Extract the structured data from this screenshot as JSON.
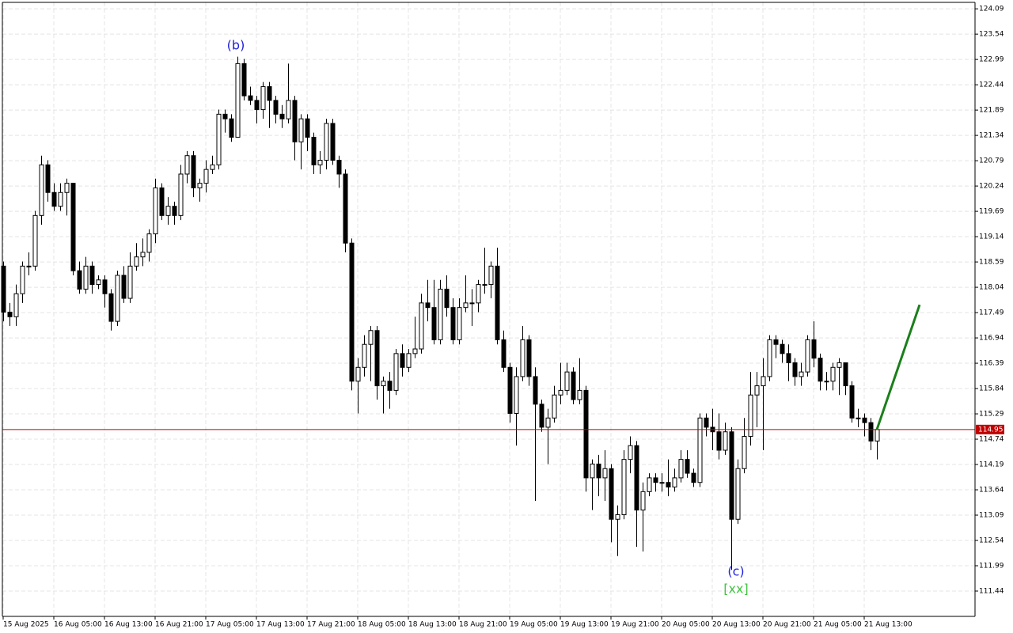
{
  "chart_data": {
    "type": "candlestick",
    "up_color": "#ffffff",
    "down_color": "#000000",
    "wick_color": "#000000",
    "grid": true,
    "current_price": 114.95,
    "current_price_color": "#c00000",
    "annotations": [
      {
        "text": "(b)",
        "color": "#2222dd"
      },
      {
        "text": "(c)",
        "color": "#2222dd"
      },
      {
        "text": "[xx]",
        "color": "#44c444"
      }
    ],
    "forecast": {
      "color": "#1a7f1a",
      "x": [
        138,
        144.75
      ],
      "values": [
        114.95,
        117.66
      ]
    },
    "xlim": [
      -0.125,
      153.5
    ],
    "xticks": [
      {
        "value": 0,
        "label": "15 Aug 2025"
      },
      {
        "value": 8,
        "label": "16 Aug 05:00"
      },
      {
        "value": 16,
        "label": "16 Aug 13:00"
      },
      {
        "value": 24,
        "label": "16 Aug 21:00"
      },
      {
        "value": 32,
        "label": "17 Aug 05:00"
      },
      {
        "value": 40,
        "label": "17 Aug 13:00"
      },
      {
        "value": 48,
        "label": "17 Aug 21:00"
      },
      {
        "value": 56,
        "label": "18 Aug 05:00"
      },
      {
        "value": 64,
        "label": "18 Aug 13:00"
      },
      {
        "value": 72,
        "label": "18 Aug 21:00"
      },
      {
        "value": 80,
        "label": "19 Aug 05:00"
      },
      {
        "value": 88,
        "label": "19 Aug 13:00"
      },
      {
        "value": 96,
        "label": "19 Aug 21:00"
      },
      {
        "value": 104,
        "label": "20 Aug 05:00"
      },
      {
        "value": 112,
        "label": "20 Aug 13:00"
      },
      {
        "value": 120,
        "label": "20 Aug 21:00"
      },
      {
        "value": 128,
        "label": "21 Aug 05:00"
      },
      {
        "value": 136,
        "label": "21 Aug 13:00"
      }
    ],
    "ylim": [
      110.89,
      124.23
    ],
    "yticks": [
      124.09,
      123.54,
      122.99,
      122.44,
      121.89,
      121.34,
      120.79,
      120.24,
      119.69,
      119.14,
      118.59,
      118.04,
      117.49,
      116.94,
      116.39,
      115.84,
      115.29,
      114.74,
      114.19,
      113.64,
      113.09,
      112.54,
      111.99,
      111.44
    ],
    "ohlc": [
      [
        118.5,
        118.6,
        117.3,
        117.5
      ],
      [
        117.5,
        117.7,
        117.2,
        117.4
      ],
      [
        117.4,
        118.1,
        117.2,
        117.9
      ],
      [
        117.9,
        118.6,
        117.7,
        118.5
      ],
      [
        118.5,
        118.8,
        118.3,
        118.5
      ],
      [
        118.5,
        119.7,
        118.4,
        119.6
      ],
      [
        119.6,
        120.9,
        119.4,
        120.7
      ],
      [
        120.7,
        120.8,
        119.9,
        120.1
      ],
      [
        120.1,
        120.3,
        119.7,
        119.8
      ],
      [
        119.8,
        120.3,
        119.7,
        120.1
      ],
      [
        120.1,
        120.4,
        119.6,
        120.3
      ],
      [
        120.3,
        120.3,
        118.3,
        118.4
      ],
      [
        118.4,
        118.6,
        117.9,
        118.0
      ],
      [
        118.0,
        118.7,
        117.9,
        118.5
      ],
      [
        118.5,
        118.6,
        117.9,
        118.1
      ],
      [
        118.1,
        118.3,
        118.0,
        118.2
      ],
      [
        118.2,
        118.3,
        117.6,
        117.9
      ],
      [
        117.9,
        118.0,
        117.1,
        117.3
      ],
      [
        117.3,
        118.4,
        117.2,
        118.3
      ],
      [
        118.3,
        118.5,
        117.7,
        117.8
      ],
      [
        117.8,
        118.8,
        117.7,
        118.5
      ],
      [
        118.5,
        119.0,
        118.4,
        118.7
      ],
      [
        118.7,
        119.1,
        118.5,
        118.8
      ],
      [
        118.8,
        119.3,
        118.6,
        119.2
      ],
      [
        119.2,
        120.4,
        119.0,
        120.2
      ],
      [
        120.2,
        120.3,
        119.5,
        119.6
      ],
      [
        119.6,
        120.0,
        119.4,
        119.8
      ],
      [
        119.8,
        119.9,
        119.4,
        119.6
      ],
      [
        119.6,
        120.7,
        119.5,
        120.5
      ],
      [
        120.5,
        121.0,
        120.3,
        120.9
      ],
      [
        120.9,
        121.0,
        120.0,
        120.2
      ],
      [
        120.2,
        120.4,
        119.9,
        120.3
      ],
      [
        120.3,
        120.8,
        120.1,
        120.6
      ],
      [
        120.6,
        120.9,
        120.5,
        120.7
      ],
      [
        120.7,
        121.9,
        120.6,
        121.8
      ],
      [
        121.8,
        121.9,
        121.4,
        121.7
      ],
      [
        121.7,
        121.8,
        121.2,
        121.3
      ],
      [
        121.3,
        123.05,
        121.3,
        122.9
      ],
      [
        122.9,
        123.0,
        122.1,
        122.2
      ],
      [
        122.2,
        122.4,
        122.0,
        122.1
      ],
      [
        122.1,
        122.2,
        121.6,
        121.9
      ],
      [
        121.9,
        122.5,
        121.7,
        122.4
      ],
      [
        122.4,
        122.5,
        121.5,
        122.1
      ],
      [
        122.1,
        122.2,
        121.6,
        121.8
      ],
      [
        121.8,
        122.0,
        121.5,
        121.7
      ],
      [
        121.7,
        122.9,
        121.6,
        122.1
      ],
      [
        122.1,
        122.2,
        120.8,
        121.2
      ],
      [
        121.2,
        121.8,
        120.6,
        121.7
      ],
      [
        121.7,
        121.8,
        121.0,
        121.3
      ],
      [
        121.3,
        121.4,
        120.5,
        120.7
      ],
      [
        120.7,
        121.0,
        120.5,
        120.8
      ],
      [
        120.8,
        121.7,
        120.6,
        121.6
      ],
      [
        121.6,
        121.7,
        120.7,
        120.8
      ],
      [
        120.8,
        120.9,
        120.2,
        120.5
      ],
      [
        120.5,
        120.6,
        118.8,
        119.0
      ],
      [
        119.0,
        119.1,
        115.8,
        116.0
      ],
      [
        116.0,
        116.5,
        115.3,
        116.3
      ],
      [
        116.3,
        117.0,
        116.1,
        116.8
      ],
      [
        116.8,
        117.2,
        116.0,
        117.1
      ],
      [
        117.1,
        117.2,
        115.6,
        115.9
      ],
      [
        115.9,
        116.1,
        115.3,
        116.0
      ],
      [
        116.0,
        116.2,
        115.4,
        115.8
      ],
      [
        115.8,
        116.7,
        115.7,
        116.6
      ],
      [
        116.6,
        116.8,
        116.1,
        116.3
      ],
      [
        116.3,
        116.7,
        116.2,
        116.6
      ],
      [
        116.6,
        117.4,
        116.5,
        116.7
      ],
      [
        116.7,
        117.9,
        116.6,
        117.7
      ],
      [
        117.7,
        118.2,
        117.3,
        117.6
      ],
      [
        117.6,
        118.2,
        116.8,
        116.9
      ],
      [
        116.9,
        118.2,
        116.8,
        118.0
      ],
      [
        118.0,
        118.3,
        117.4,
        117.6
      ],
      [
        117.6,
        117.8,
        116.8,
        116.9
      ],
      [
        116.9,
        117.8,
        116.8,
        117.6
      ],
      [
        117.6,
        118.3,
        117.5,
        117.7
      ],
      [
        117.7,
        118.0,
        117.2,
        117.7
      ],
      [
        117.7,
        118.2,
        117.5,
        118.1
      ],
      [
        118.1,
        118.9,
        117.9,
        118.1
      ],
      [
        118.1,
        118.6,
        117.8,
        118.5
      ],
      [
        118.5,
        118.9,
        116.8,
        116.9
      ],
      [
        116.9,
        117.1,
        116.2,
        116.3
      ],
      [
        116.3,
        116.4,
        115.1,
        115.3
      ],
      [
        115.3,
        116.3,
        114.6,
        116.1
      ],
      [
        116.1,
        117.2,
        116.0,
        116.9
      ],
      [
        116.9,
        117.0,
        115.9,
        116.1
      ],
      [
        116.1,
        116.3,
        113.4,
        115.5
      ],
      [
        115.5,
        115.6,
        114.9,
        115.0
      ],
      [
        115.0,
        115.4,
        114.2,
        115.2
      ],
      [
        115.2,
        115.9,
        115.1,
        115.7
      ],
      [
        115.7,
        116.4,
        115.5,
        115.8
      ],
      [
        115.8,
        116.4,
        115.7,
        116.2
      ],
      [
        116.2,
        116.3,
        115.5,
        115.6
      ],
      [
        115.6,
        116.5,
        115.5,
        115.8
      ],
      [
        115.8,
        115.9,
        113.6,
        113.9
      ],
      [
        113.9,
        114.3,
        113.2,
        114.2
      ],
      [
        114.2,
        114.4,
        113.5,
        113.9
      ],
      [
        113.9,
        114.5,
        113.4,
        114.1
      ],
      [
        114.1,
        114.2,
        112.5,
        113.0
      ],
      [
        113.0,
        113.3,
        112.2,
        113.1
      ],
      [
        113.1,
        114.5,
        113.0,
        114.3
      ],
      [
        114.3,
        114.8,
        114.0,
        114.6
      ],
      [
        114.6,
        114.7,
        112.4,
        113.2
      ],
      [
        113.2,
        113.8,
        112.3,
        113.6
      ],
      [
        113.6,
        114.0,
        113.5,
        113.9
      ],
      [
        113.9,
        114.0,
        113.6,
        113.8
      ],
      [
        113.8,
        114.0,
        113.6,
        113.8
      ],
      [
        113.8,
        114.3,
        113.5,
        113.7
      ],
      [
        113.7,
        114.1,
        113.6,
        113.9
      ],
      [
        113.9,
        114.5,
        113.8,
        114.3
      ],
      [
        114.3,
        114.5,
        113.9,
        114.0
      ],
      [
        114.0,
        114.1,
        113.7,
        113.8
      ],
      [
        113.8,
        115.3,
        113.7,
        115.2
      ],
      [
        115.2,
        115.3,
        114.8,
        115.0
      ],
      [
        115.0,
        115.4,
        114.5,
        114.9
      ],
      [
        114.9,
        115.3,
        114.3,
        114.5
      ],
      [
        114.5,
        115.1,
        114.4,
        114.9
      ],
      [
        114.9,
        115.0,
        111.9,
        113.0
      ],
      [
        113.0,
        114.3,
        112.9,
        114.1
      ],
      [
        114.1,
        115.2,
        114.0,
        114.8
      ],
      [
        114.8,
        116.2,
        114.6,
        115.7
      ],
      [
        115.7,
        116.2,
        115.0,
        115.9
      ],
      [
        115.9,
        116.5,
        114.5,
        116.1
      ],
      [
        116.1,
        117.0,
        116.0,
        116.9
      ],
      [
        116.9,
        117.0,
        116.5,
        116.8
      ],
      [
        116.8,
        116.9,
        116.4,
        116.6
      ],
      [
        116.6,
        116.8,
        116.0,
        116.4
      ],
      [
        116.4,
        116.5,
        115.9,
        116.1
      ],
      [
        116.1,
        116.4,
        115.9,
        116.2
      ],
      [
        116.2,
        117.0,
        116.1,
        116.9
      ],
      [
        116.9,
        117.3,
        116.3,
        116.5
      ],
      [
        116.5,
        116.6,
        115.8,
        116.0
      ],
      [
        116.0,
        116.2,
        115.8,
        116.0
      ],
      [
        116.0,
        116.4,
        115.8,
        116.3
      ],
      [
        116.3,
        116.5,
        115.7,
        116.4
      ],
      [
        116.4,
        116.4,
        115.7,
        115.9
      ],
      [
        115.9,
        116.0,
        115.1,
        115.2
      ],
      [
        115.2,
        115.4,
        115.0,
        115.2
      ],
      [
        115.2,
        115.3,
        114.8,
        115.1
      ],
      [
        115.1,
        115.2,
        114.5,
        114.7
      ],
      [
        114.7,
        114.95,
        114.3,
        114.95
      ]
    ]
  }
}
